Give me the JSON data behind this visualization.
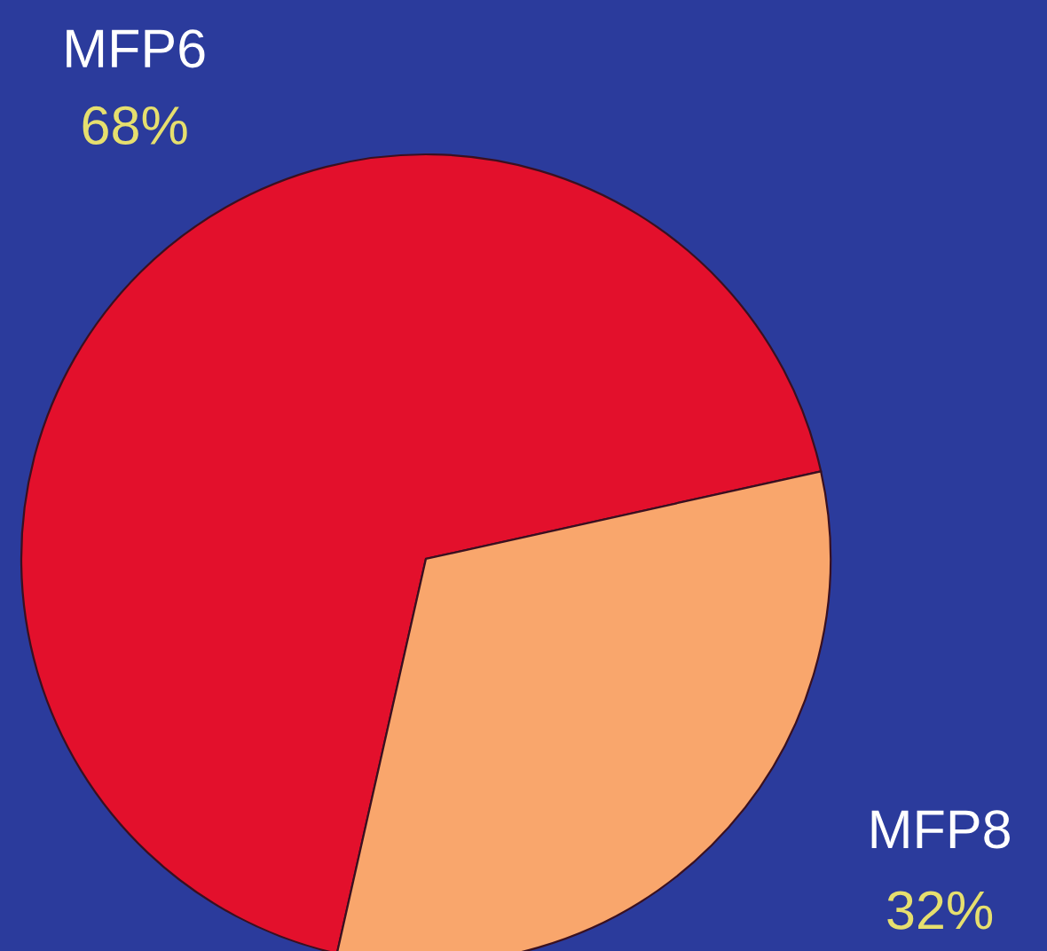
{
  "chart_data": {
    "type": "pie",
    "categories": [
      "MFP6",
      "MFP8"
    ],
    "values": [
      68,
      32
    ],
    "value_labels": [
      "68%",
      "32%"
    ],
    "colors": [
      "#e3102c",
      "#f9a66c"
    ]
  }
}
